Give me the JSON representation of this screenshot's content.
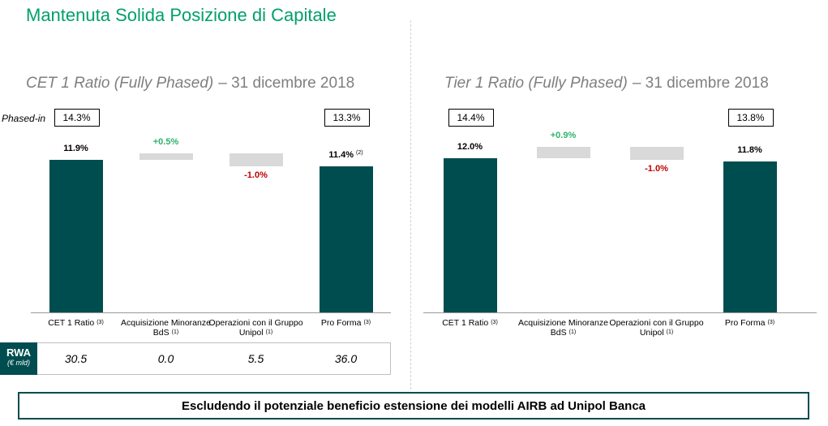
{
  "header": {
    "title": "Mantenuta Solida Posizione di Capitale"
  },
  "chart_data": [
    {
      "type": "waterfall",
      "title": "CET 1 Ratio (Fully Phased)",
      "title_date": "– 31 dicembre 2018",
      "categories": [
        "CET 1 Ratio",
        "Acquisizione Minoranze BdS",
        "Operazioni con il Gruppo Unipol",
        "Pro Forma"
      ],
      "category_notes": [
        "(3)",
        "(1)",
        "(1)",
        "(3)"
      ],
      "measures": [
        "total",
        "relative",
        "relative",
        "total"
      ],
      "values": [
        11.9,
        0.5,
        -1.0,
        11.4
      ],
      "value_labels": [
        "11.9%",
        "+0.5%",
        "-1.0%",
        "11.4%"
      ],
      "value_notes": [
        null,
        null,
        null,
        "(2)"
      ],
      "colors": {
        "total": "#004d4f",
        "delta": "#d9d9d9",
        "positive_label": "#2db36b",
        "negative_label": "#c00000",
        "total_label": "#000000"
      },
      "phased_in_label": "Phased-in",
      "phased_in": [
        {
          "value": 14.3,
          "label": "14.3%"
        },
        {
          "value": 13.3,
          "label": "13.3%"
        }
      ],
      "rwa": {
        "label": "RWA",
        "unit": "(€ mld)",
        "values": [
          30.5,
          0.0,
          5.5,
          36.0
        ],
        "value_labels": [
          "30.5",
          "0.0",
          "5.5",
          "36.0"
        ]
      }
    },
    {
      "type": "waterfall",
      "title": "Tier 1 Ratio (Fully Phased)",
      "title_date": "– 31 dicembre 2018",
      "categories": [
        "CET 1 Ratio",
        "Acquisizione Minoranze BdS",
        "Operazioni con il Gruppo Unipol",
        "Pro Forma"
      ],
      "category_notes": [
        "(3)",
        "(1)",
        "(1)",
        "(3)"
      ],
      "measures": [
        "total",
        "relative",
        "relative",
        "total"
      ],
      "values": [
        12.0,
        0.9,
        -1.0,
        11.8
      ],
      "value_labels": [
        "12.0%",
        "+0.9%",
        "-1.0%",
        "11.8%"
      ],
      "value_notes": [
        null,
        null,
        null,
        null
      ],
      "colors": {
        "total": "#004d4f",
        "delta": "#d9d9d9",
        "positive_label": "#2db36b",
        "negative_label": "#c00000",
        "total_label": "#000000"
      },
      "phased_in": [
        {
          "value": 14.4,
          "label": "14.4%"
        },
        {
          "value": 13.8,
          "label": "13.8%"
        }
      ]
    }
  ],
  "footer": {
    "text": "Escludendo il potenziale beneficio estensione dei modelli AIRB ad Unipol Banca"
  }
}
